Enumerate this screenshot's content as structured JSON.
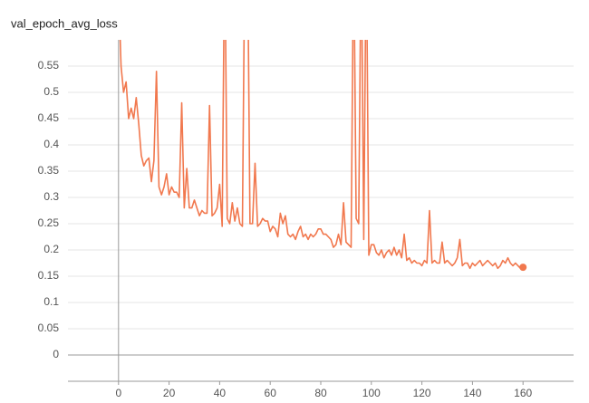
{
  "chart_data": {
    "type": "line",
    "title": "val_epoch_avg_loss",
    "x": [
      0,
      1,
      2,
      3,
      4,
      5,
      6,
      7,
      8,
      9,
      10,
      11,
      12,
      13,
      14,
      15,
      16,
      17,
      18,
      19,
      20,
      21,
      22,
      23,
      24,
      25,
      26,
      27,
      28,
      29,
      30,
      31,
      32,
      33,
      34,
      35,
      36,
      37,
      38,
      39,
      40,
      41,
      42,
      43,
      44,
      45,
      46,
      47,
      48,
      49,
      50,
      51,
      52,
      53,
      54,
      55,
      56,
      57,
      58,
      59,
      60,
      61,
      62,
      63,
      64,
      65,
      66,
      67,
      68,
      69,
      70,
      71,
      72,
      73,
      74,
      75,
      76,
      77,
      78,
      79,
      80,
      81,
      82,
      83,
      84,
      85,
      86,
      87,
      88,
      89,
      90,
      91,
      92,
      93,
      94,
      95,
      96,
      97,
      98,
      99,
      100,
      101,
      102,
      103,
      104,
      105,
      106,
      107,
      108,
      109,
      110,
      111,
      112,
      113,
      114,
      115,
      116,
      117,
      118,
      119,
      120,
      121,
      122,
      123,
      124,
      125,
      126,
      127,
      128,
      129,
      130,
      131,
      132,
      133,
      134,
      135,
      136,
      137,
      138,
      139,
      140,
      141,
      142,
      143,
      144,
      145,
      146,
      147,
      148,
      149,
      150,
      151,
      152,
      153,
      154,
      155,
      156,
      157,
      158,
      159,
      160
    ],
    "series": [
      {
        "name": "val_epoch_avg_loss",
        "color": "#f1784e",
        "values": [
          0.7,
          0.55,
          0.5,
          0.52,
          0.45,
          0.47,
          0.45,
          0.49,
          0.44,
          0.38,
          0.36,
          0.37,
          0.375,
          0.33,
          0.37,
          0.54,
          0.32,
          0.305,
          0.32,
          0.345,
          0.305,
          0.32,
          0.31,
          0.31,
          0.3,
          0.48,
          0.28,
          0.355,
          0.28,
          0.28,
          0.295,
          0.28,
          0.265,
          0.275,
          0.27,
          0.27,
          0.475,
          0.265,
          0.27,
          0.28,
          0.325,
          0.245,
          0.8,
          0.26,
          0.25,
          0.29,
          0.255,
          0.28,
          0.25,
          0.245,
          0.8,
          0.8,
          0.25,
          0.25,
          0.365,
          0.245,
          0.25,
          0.26,
          0.255,
          0.255,
          0.235,
          0.245,
          0.24,
          0.225,
          0.27,
          0.25,
          0.265,
          0.23,
          0.225,
          0.23,
          0.22,
          0.235,
          0.245,
          0.225,
          0.23,
          0.22,
          0.23,
          0.225,
          0.23,
          0.24,
          0.24,
          0.23,
          0.23,
          0.225,
          0.22,
          0.205,
          0.21,
          0.23,
          0.21,
          0.29,
          0.215,
          0.21,
          0.205,
          0.8,
          0.26,
          0.25,
          0.8,
          0.22,
          0.8,
          0.19,
          0.21,
          0.21,
          0.195,
          0.19,
          0.2,
          0.185,
          0.195,
          0.2,
          0.19,
          0.205,
          0.19,
          0.2,
          0.185,
          0.23,
          0.18,
          0.185,
          0.175,
          0.18,
          0.175,
          0.175,
          0.17,
          0.18,
          0.175,
          0.275,
          0.175,
          0.18,
          0.175,
          0.175,
          0.215,
          0.175,
          0.18,
          0.175,
          0.17,
          0.175,
          0.185,
          0.22,
          0.17,
          0.175,
          0.175,
          0.165,
          0.175,
          0.17,
          0.175,
          0.18,
          0.17,
          0.175,
          0.18,
          0.175,
          0.17,
          0.175,
          0.165,
          0.17,
          0.18,
          0.175,
          0.185,
          0.175,
          0.17,
          0.175,
          0.17,
          0.165,
          0.167
        ]
      }
    ],
    "xlim": [
      -20,
      180
    ],
    "ylim": [
      -0.05,
      0.6
    ],
    "xticks": [
      0,
      20,
      40,
      60,
      80,
      100,
      120,
      140,
      160
    ],
    "yticks": [
      0,
      0.05,
      0.1,
      0.15,
      0.2,
      0.25,
      0.3,
      0.35,
      0.4,
      0.45,
      0.5,
      0.55
    ],
    "grid": true
  }
}
